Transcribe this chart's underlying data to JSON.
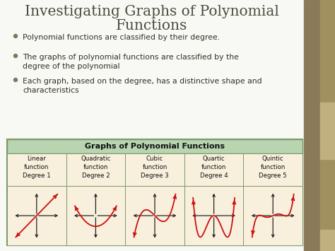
{
  "title_line1": "Investigating Graphs of Polynomial",
  "title_line2": "Functions",
  "bullets": [
    "Polynomial functions are classified by their degree.",
    "The graphs of polynomial functions are classified by the\ndegree of the polynomial",
    "Each graph, based on the degree, has a distinctive shape and\ncharacteristics"
  ],
  "table_title": "Graphs of Polynomial Functions",
  "columns": [
    {
      "label": "Linear\nfunction\nDegree 1",
      "degree": 1
    },
    {
      "label": "Quadratic\nfunction\nDegree 2",
      "degree": 2
    },
    {
      "label": "Cubic\nfunction\nDegree 3",
      "degree": 3
    },
    {
      "label": "Quartic\nfunction\nDegree 4",
      "degree": 4
    },
    {
      "label": "Quintic\nfunction\nDegree 5",
      "degree": 5
    }
  ],
  "bg_color": "#e8e8e0",
  "slide_bg": "#f8f8f5",
  "table_header_color": "#b8d4b0",
  "table_cell_color": "#f8f0dc",
  "table_border_color": "#7a9a68",
  "title_color": "#4a4a3a",
  "bullet_color": "#333325",
  "curve_color": "#cc1010",
  "axis_color": "#222222",
  "right_bar_color1": "#8a7a5a",
  "right_bar_color2": "#a09060",
  "right_bar_color3": "#c0b080"
}
